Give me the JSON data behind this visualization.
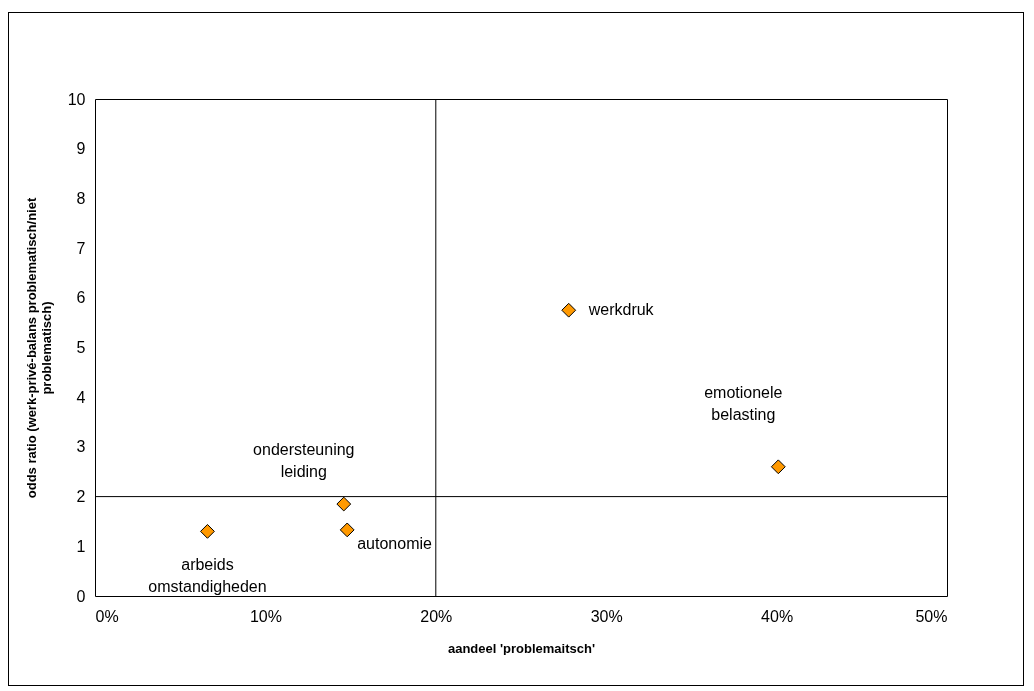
{
  "chart_data": {
    "type": "scatter",
    "xlabel": "aandeel 'problemaitsch'",
    "ylabel": "odds ratio (werk-privé-balans problematisch/niet problematisch)",
    "x": [
      6.6,
      14.6,
      14.8,
      27.8,
      40.1
    ],
    "series": [
      {
        "color": "#ff9900",
        "values": [
          1.3,
          1.85,
          1.33,
          5.75,
          2.6
        ]
      }
    ],
    "annotations": [
      {
        "text": "arbeids omstandigheden",
        "x": 6.6,
        "y": 1.3
      },
      {
        "text": "ondersteuning leiding",
        "x": 14.6,
        "y": 1.85
      },
      {
        "text": "autonomie",
        "x": 14.8,
        "y": 1.33
      },
      {
        "text": "werkdruk",
        "x": 27.8,
        "y": 5.75
      },
      {
        "text": "emotionele belasting",
        "x": 40.1,
        "y": 2.6
      }
    ],
    "ref_lines": [
      {
        "axis": "x",
        "value": 20,
        "color": "#000000"
      },
      {
        "axis": "y",
        "value": 2,
        "color": "#000000"
      }
    ],
    "xlim": [
      0,
      50
    ],
    "xticks": [
      {
        "value": 0,
        "label": "0%"
      },
      {
        "value": 10,
        "label": "10%"
      },
      {
        "value": 20,
        "label": "20%"
      },
      {
        "value": 30,
        "label": "30%"
      },
      {
        "value": 40,
        "label": "40%"
      },
      {
        "value": 50,
        "label": "50%"
      }
    ],
    "ylim": [
      0,
      10
    ],
    "yticks": [
      0,
      1,
      2,
      3,
      4,
      5,
      6,
      7,
      8,
      9,
      10
    ],
    "grid": false,
    "marker": "diamond"
  }
}
